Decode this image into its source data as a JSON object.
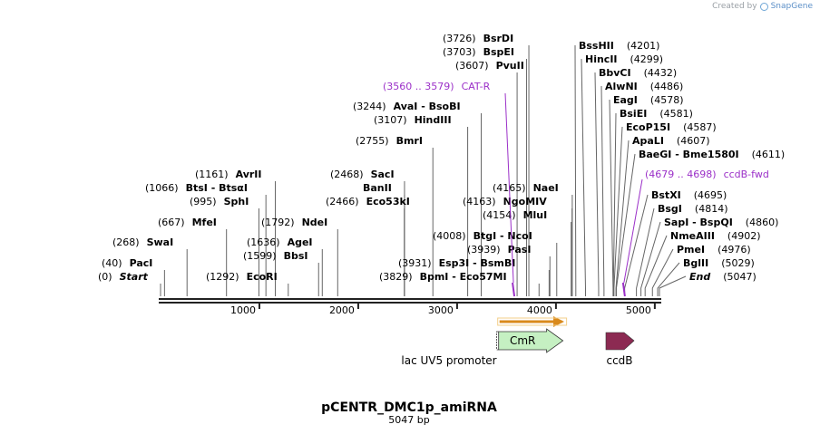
{
  "credit": {
    "prefix": "Created by",
    "brand": "SnapGene"
  },
  "plasmid": {
    "name": "pCENTR_DMC1p_amiRNA",
    "size_label": "5047 bp",
    "length": 5047
  },
  "axis": {
    "ticks": [
      1000,
      2000,
      3000,
      4000,
      5000
    ]
  },
  "colors": {
    "line": "#555555",
    "purple": "#9b30c8",
    "orange": "#d98a1c",
    "cmr": "#c5f0c2",
    "ccdb": "#8c2a52"
  },
  "enzymes": [
    {
      "pos": "(0)",
      "name": "Start",
      "bp": 0,
      "italic": true
    },
    {
      "pos": "(40)",
      "name": "PacI",
      "bp": 40
    },
    {
      "pos": "(268)",
      "name": "SwaI",
      "bp": 268
    },
    {
      "pos": "(667)",
      "name": "MfeI",
      "bp": 667
    },
    {
      "pos": "(995)",
      "name": "SphI",
      "bp": 995
    },
    {
      "pos": "(1066)",
      "name": "BtsI - BtsαI",
      "bp": 1066
    },
    {
      "pos": "(1161)",
      "name": "AvrII",
      "bp": 1161
    },
    {
      "pos": "(1292)",
      "name": "EcoRI",
      "bp": 1292
    },
    {
      "pos": "(1599)",
      "name": "BbsI",
      "bp": 1599
    },
    {
      "pos": "(1636)",
      "name": "AgeI",
      "bp": 1636
    },
    {
      "pos": "(1792)",
      "name": "NdeI",
      "bp": 1792
    },
    {
      "pos": "(2466)",
      "name": "Eco53kI",
      "bp": 2466
    },
    {
      "pos": "",
      "name": "BanII",
      "bp": 2468
    },
    {
      "pos": "(2468)",
      "name": "SacI",
      "bp": 2468
    },
    {
      "pos": "(2755)",
      "name": "BmrI",
      "bp": 2755
    },
    {
      "pos": "(3107)",
      "name": "HindIII",
      "bp": 3107
    },
    {
      "pos": "(3244)",
      "name": "AvaI - BsoBI",
      "bp": 3244
    },
    {
      "pos": "(3607)",
      "name": "PvuII",
      "bp": 3607
    },
    {
      "pos": "(3703)",
      "name": "BspEI",
      "bp": 3703
    },
    {
      "pos": "(3726)",
      "name": "BsrDI",
      "bp": 3726
    },
    {
      "pos": "(3829)",
      "name": "BpmI - Eco57MI",
      "bp": 3829
    },
    {
      "pos": "(3931)",
      "name": "Esp3I - BsmBI",
      "bp": 3931
    },
    {
      "pos": "(3939)",
      "name": "PasI",
      "bp": 3939
    },
    {
      "pos": "(4008)",
      "name": "BtgI - NcoI",
      "bp": 4008
    },
    {
      "pos": "(4154)",
      "name": "MluI",
      "bp": 4154
    },
    {
      "pos": "(4163)",
      "name": "NgoMIV",
      "bp": 4163
    },
    {
      "pos": "(4165)",
      "name": "NaeI",
      "bp": 4165
    },
    {
      "pos": "(4201)",
      "name": "BssHII",
      "bp": 4201
    },
    {
      "pos": "(4299)",
      "name": "HincII",
      "bp": 4299
    },
    {
      "pos": "(4432)",
      "name": "BbvCI",
      "bp": 4432
    },
    {
      "pos": "(4486)",
      "name": "AlwNI",
      "bp": 4486
    },
    {
      "pos": "(4578)",
      "name": "EagI",
      "bp": 4578
    },
    {
      "pos": "(4581)",
      "name": "BsiEI",
      "bp": 4581
    },
    {
      "pos": "(4587)",
      "name": "EcoP15I",
      "bp": 4587
    },
    {
      "pos": "(4607)",
      "name": "ApaLI",
      "bp": 4607
    },
    {
      "pos": "(4611)",
      "name": "BaeGI - Bme1580I",
      "bp": 4611
    },
    {
      "pos": "(4695)",
      "name": "BstXI",
      "bp": 4695
    },
    {
      "pos": "(4814)",
      "name": "BsgI",
      "bp": 4814
    },
    {
      "pos": "(4860)",
      "name": "SapI - BspQI",
      "bp": 4860
    },
    {
      "pos": "(4902)",
      "name": "NmeAIII",
      "bp": 4902
    },
    {
      "pos": "(4976)",
      "name": "PmeI",
      "bp": 4976
    },
    {
      "pos": "(5029)",
      "name": "BglII",
      "bp": 5029
    },
    {
      "pos": "(5047)",
      "name": "End",
      "bp": 5047,
      "italic": true
    }
  ],
  "primers": [
    {
      "range": "(3560 .. 3579)",
      "name": "CAT-R",
      "bp": 3570
    },
    {
      "range": "(4679 .. 4698)",
      "name": "ccdB-fwd",
      "bp": 4688
    }
  ],
  "features": [
    {
      "name": "lac UV5 promoter",
      "type": "promoter",
      "start": 3410,
      "end": 3420
    },
    {
      "name": "CmR",
      "type": "gene",
      "start": 3420,
      "end": 4080
    },
    {
      "name": "ccdB",
      "type": "gene",
      "start": 4600,
      "end": 4900
    }
  ]
}
